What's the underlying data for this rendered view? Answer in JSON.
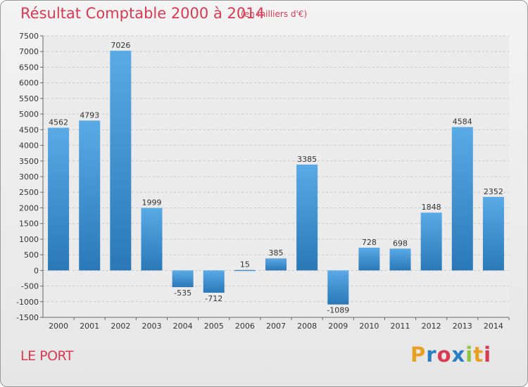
{
  "header": {
    "title": "Résultat Comptable 2000 à 2014",
    "subtitle": "(en milliers d'€)"
  },
  "footer": {
    "commune": "LE PORT",
    "logo_text": "Proxiti"
  },
  "colors": {
    "title": "#d83a52",
    "bar_light": "#5aaae6",
    "bar_dark": "#2a78b8",
    "grid": "#c8c8c8",
    "logo": [
      "#e8a020",
      "#2a7fc4",
      "#d83a52",
      "#2a7fc4",
      "#8cc63f",
      "#e8a020",
      "#d83a52"
    ]
  },
  "chart_data": {
    "type": "bar",
    "title": "Résultat Comptable 2000 à 2014",
    "subtitle": "(en milliers d'€)",
    "xlabel": "",
    "ylabel": "",
    "categories": [
      "2000",
      "2001",
      "2002",
      "2003",
      "2004",
      "2005",
      "2006",
      "2007",
      "2008",
      "2009",
      "2010",
      "2011",
      "2012",
      "2013",
      "2014"
    ],
    "values": [
      4562,
      4793,
      7026,
      1999,
      -535,
      -712,
      15,
      385,
      3385,
      -1089,
      728,
      698,
      1848,
      4584,
      2352
    ],
    "ylim": [
      -1500,
      7500
    ],
    "yticks": [
      7500,
      7000,
      6500,
      6000,
      5500,
      5000,
      4500,
      4000,
      3500,
      3000,
      2500,
      2000,
      1500,
      1000,
      500,
      0,
      -500,
      -1000,
      -1500
    ],
    "grid": true
  }
}
